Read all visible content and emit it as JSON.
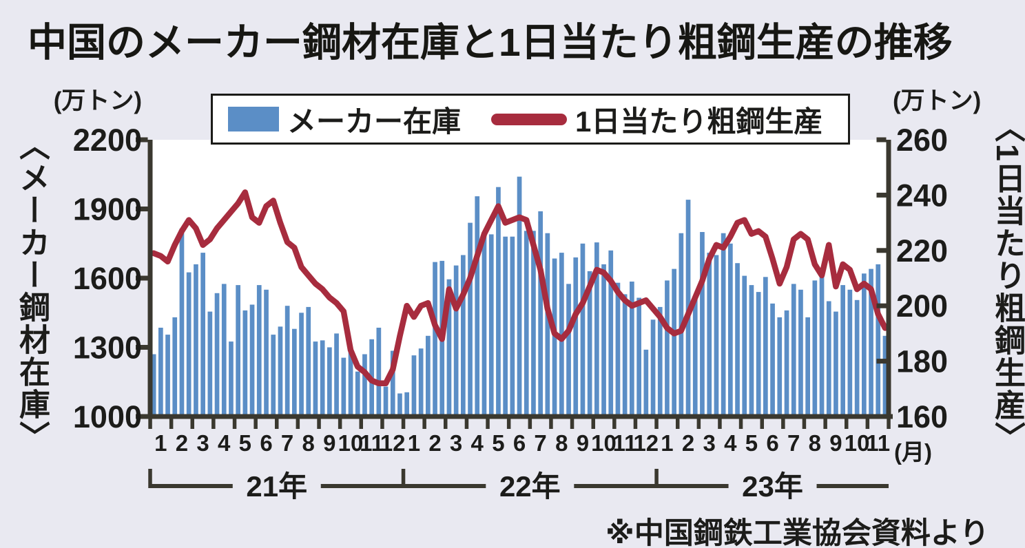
{
  "title": "中国のメーカー鋼材在庫と1日当たり粗鋼生産の推移",
  "source_note": "※中国鋼鉄工業協会資料より",
  "colors": {
    "background": "#e9e9f1",
    "plot_background": "#ffffff",
    "bar": "#5b8ec6",
    "line": "#a72c3e",
    "axis": "#3a382f",
    "text": "#1c1c1a"
  },
  "legend": {
    "bar_label": "メーカー在庫",
    "line_label": "1日当たり粗鋼生産"
  },
  "left_axis": {
    "unit": "(万トン)",
    "title": "〈メーカー鋼材在庫〉",
    "ticks": [
      2200,
      1900,
      1600,
      1300,
      1000
    ]
  },
  "right_axis": {
    "unit": "(万トン)",
    "title": "〈1日当たり粗鋼生産〉",
    "ticks": [
      260,
      240,
      220,
      200,
      180,
      160
    ]
  },
  "x_axis": {
    "unit_label": "(月)"
  },
  "chart_data": {
    "type": "combo",
    "subtype": "bar+line, 3 values (10-day periods) per month",
    "left_ylim": [
      1000,
      2200
    ],
    "right_ylim": [
      160,
      260
    ],
    "grid": false,
    "legend_position": "top",
    "x": {
      "years": [
        {
          "label": "21年",
          "months": [
            "1",
            "2",
            "3",
            "4",
            "5",
            "6",
            "7",
            "8",
            "9",
            "10",
            "11",
            "12"
          ]
        },
        {
          "label": "22年",
          "months": [
            "1",
            "2",
            "3",
            "4",
            "5",
            "6",
            "7",
            "8",
            "9",
            "10",
            "11",
            "12"
          ]
        },
        {
          "label": "23年",
          "months": [
            "1",
            "2",
            "3",
            "4",
            "5",
            "6",
            "7",
            "8",
            "9",
            "10",
            "11"
          ]
        }
      ]
    },
    "series": [
      {
        "name": "メーカー在庫",
        "type": "bar",
        "yaxis": "left",
        "unit": "万トン",
        "color": "#5b8ec6",
        "values": [
          1270,
          1385,
          1355,
          1430,
          1815,
          1625,
          1660,
          1710,
          1455,
          1535,
          1575,
          1325,
          1570,
          1460,
          1485,
          1570,
          1550,
          1355,
          1390,
          1480,
          1380,
          1450,
          1475,
          1325,
          1330,
          1300,
          1360,
          1255,
          1295,
          1195,
          1270,
          1335,
          1385,
          1130,
          1285,
          1100,
          1105,
          1265,
          1295,
          1350,
          1670,
          1675,
          1595,
          1655,
          1700,
          1840,
          1955,
          1800,
          1790,
          1995,
          1780,
          1780,
          2040,
          1805,
          1805,
          1890,
          1795,
          1685,
          1710,
          1575,
          1690,
          1750,
          1630,
          1755,
          1660,
          1720,
          1580,
          1530,
          1585,
          1515,
          1290,
          1420,
          1475,
          1590,
          1640,
          1795,
          1940,
          1510,
          1800,
          1710,
          1700,
          1795,
          1750,
          1665,
          1610,
          1570,
          1540,
          1605,
          1490,
          1430,
          1460,
          1575,
          1550,
          1430,
          1590,
          1630,
          1500,
          1455,
          1570,
          1550,
          1505,
          1620,
          1640,
          1660,
          1350
        ]
      },
      {
        "name": "1日当たり粗鋼生産",
        "type": "line",
        "yaxis": "right",
        "unit": "万トン",
        "color": "#a72c3e",
        "values": [
          219,
          218,
          216,
          222,
          227,
          231,
          228,
          222,
          224,
          228,
          231,
          234,
          237,
          241,
          232,
          230,
          236,
          238,
          230,
          223,
          221,
          214,
          211,
          208,
          206,
          203,
          201,
          198,
          184,
          178,
          176,
          173,
          172,
          172,
          177,
          189,
          200,
          196,
          200,
          201,
          193,
          188,
          206,
          199,
          204,
          210,
          218,
          226,
          231,
          236,
          230,
          231,
          232,
          231,
          222,
          213,
          199,
          190,
          188,
          191,
          197,
          201,
          207,
          213,
          212,
          209,
          205,
          202,
          200,
          201,
          202,
          199,
          196,
          192,
          190,
          191,
          197,
          203,
          209,
          217,
          222,
          221,
          225,
          230,
          231,
          226,
          227,
          225,
          217,
          208,
          214,
          224,
          226,
          224,
          215,
          211,
          222,
          207,
          215,
          213,
          206,
          208,
          206,
          197,
          192
        ]
      }
    ]
  }
}
